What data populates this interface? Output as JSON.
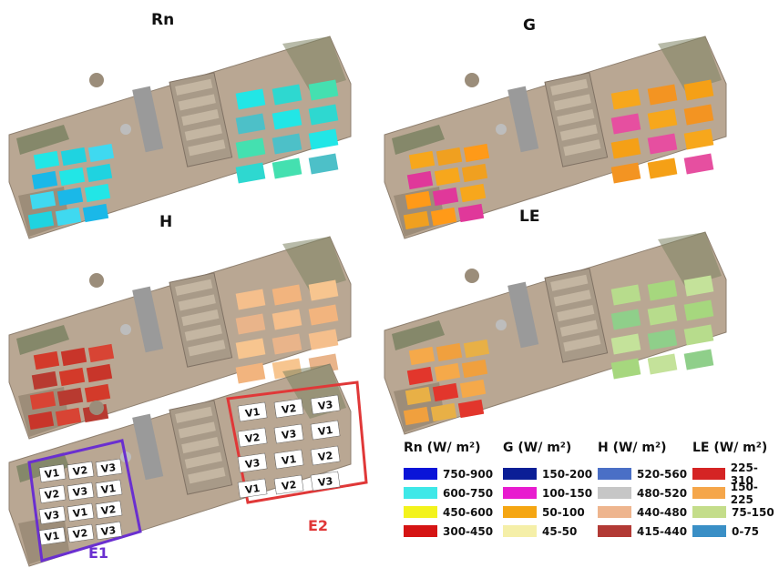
{
  "panels": [
    {
      "title": "Rn",
      "colors": {
        "e1": [
          "#22e6e6",
          "#1fd3e0",
          "#3fd9f0",
          "#1ab8e8"
        ],
        "e2": [
          "#22e6e6",
          "#2ed8d0",
          "#44e0b0",
          "#4dc0c8"
        ]
      }
    },
    {
      "title": "G",
      "colors": {
        "e1": [
          "#f7a71c",
          "#f0a020",
          "#ff9a18",
          "#e0389a"
        ],
        "e2": [
          "#f7a71c",
          "#f39422",
          "#f5a016",
          "#e64fa0"
        ]
      }
    },
    {
      "title": "H",
      "colors": {
        "e1": [
          "#d33a2a",
          "#c8352a",
          "#d84434",
          "#b83a30"
        ],
        "e2": [
          "#f5bf8c",
          "#f2b47e",
          "#f7c58f",
          "#e9b48a"
        ]
      }
    },
    {
      "title": "LE",
      "colors": {
        "e1": [
          "#f5a94a",
          "#f0a03e",
          "#e8b046",
          "#e2362c"
        ],
        "e2": [
          "#b7dc8c",
          "#a6d77e",
          "#c4e29a",
          "#8fcf8a"
        ]
      }
    }
  ],
  "layout_panel": {
    "e1_plots": [
      "V1",
      "V2",
      "V3",
      "V2",
      "V3",
      "V1",
      "V3",
      "V1",
      "V2",
      "V1",
      "V2",
      "V3"
    ],
    "e2_plots": [
      "V1",
      "V2",
      "V3",
      "V2",
      "V3",
      "V1",
      "V3",
      "V1",
      "V2",
      "V1",
      "V2",
      "V3"
    ],
    "e1_label": "E1",
    "e2_label": "E2",
    "e1_color": "#6a2fd0",
    "e2_color": "#e03838"
  },
  "legends": [
    {
      "title": "Rn (W/ m²)",
      "items": [
        {
          "label": "750-900",
          "color": "#0a14d8"
        },
        {
          "label": "600-750",
          "color": "#3ee8e8"
        },
        {
          "label": "450-600",
          "color": "#f3f31c"
        },
        {
          "label": "300-450",
          "color": "#d51414"
        }
      ]
    },
    {
      "title": "G  (W/ m²)",
      "items": [
        {
          "label": "150-200",
          "color": "#0b1e96"
        },
        {
          "label": "100-150",
          "color": "#e81ccf"
        },
        {
          "label": "50-100",
          "color": "#f5a612"
        },
        {
          "label": "45-50",
          "color": "#f5efa8"
        }
      ]
    },
    {
      "title": "H (W/ m²)",
      "items": [
        {
          "label": "520-560",
          "color": "#4a6fc6"
        },
        {
          "label": "480-520",
          "color": "#c6c6c6"
        },
        {
          "label": "440-480",
          "color": "#eeb58e"
        },
        {
          "label": "415-440",
          "color": "#b23a35"
        }
      ]
    },
    {
      "title": "LE (W/ m²)",
      "items": [
        {
          "label": "225-310",
          "color": "#d52424"
        },
        {
          "label": "150-225",
          "color": "#f5a64a"
        },
        {
          "label": "75-150",
          "color": "#c4dd8a"
        },
        {
          "label": "0-75",
          "color": "#3a8fc6"
        }
      ]
    }
  ]
}
